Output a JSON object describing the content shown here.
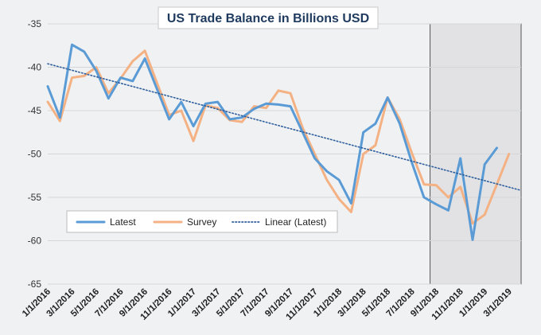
{
  "chart_data": {
    "type": "line",
    "title": "US Trade Balance in Billions USD",
    "xlabel": "",
    "ylabel": "",
    "ylim": [
      -65,
      -35
    ],
    "y_ticks": [
      -35,
      -40,
      -45,
      -50,
      -55,
      -60,
      -65
    ],
    "x_tick_labels": [
      "1/1/2016",
      "3/1/2016",
      "5/1/2016",
      "7/1/2016",
      "9/1/2016",
      "11/1/2016",
      "1/1/2017",
      "3/1/2017",
      "5/1/2017",
      "7/1/2017",
      "9/1/2017",
      "11/1/2017",
      "1/1/2018",
      "3/1/2018",
      "5/1/2018",
      "7/1/2018",
      "9/1/2018",
      "11/1/2018",
      "1/1/2019",
      "3/1/2019"
    ],
    "x_index_range": [
      0,
      39
    ],
    "grid": "horizontal",
    "legend_position": "lower-left",
    "shaded_region": {
      "from_index": 31.5,
      "to_index": 39,
      "color": "#e2e2e4"
    },
    "series": [
      {
        "name": "Latest",
        "color": "#5b9bd5",
        "x_index_start": 0,
        "values": [
          -42.2,
          -45.8,
          -37.4,
          -38.2,
          -40.4,
          -43.6,
          -41.2,
          -41.6,
          -39.0,
          -42.5,
          -46.0,
          -44.0,
          -46.8,
          -44.2,
          -44.0,
          -46.0,
          -45.8,
          -44.8,
          -44.2,
          -44.3,
          -44.5,
          -47.5,
          -50.5,
          -52.0,
          -53.0,
          -55.7,
          -47.5,
          -46.5,
          -43.5,
          -46.5,
          -51.0,
          -55.0,
          -55.8,
          -56.5,
          -50.5,
          -59.9,
          -51.2,
          -49.3
        ]
      },
      {
        "name": "Survey",
        "color": "#f4b183",
        "x_index_start": 0,
        "values": [
          -44.0,
          -46.2,
          -41.2,
          -41.0,
          -40.0,
          -43.0,
          -41.3,
          -39.3,
          -38.1,
          -41.8,
          -45.5,
          -45.0,
          -48.5,
          -44.4,
          -44.7,
          -46.1,
          -46.3,
          -44.5,
          -44.7,
          -42.7,
          -43.0,
          -47.0,
          -50.0,
          -53.0,
          -55.2,
          -56.7,
          -50.0,
          -49.0,
          -43.5,
          -46.0,
          -49.9,
          -53.5,
          -53.6,
          -55.0,
          -53.8,
          -58.0,
          -57.0,
          -53.5,
          -50.0
        ]
      }
    ],
    "trendline": {
      "name": "Linear (Latest)",
      "color": "#2e5f9e",
      "style": "dotted",
      "from_index": 0,
      "from_value": -39.6,
      "to_index": 39,
      "to_value": -54.2
    }
  }
}
